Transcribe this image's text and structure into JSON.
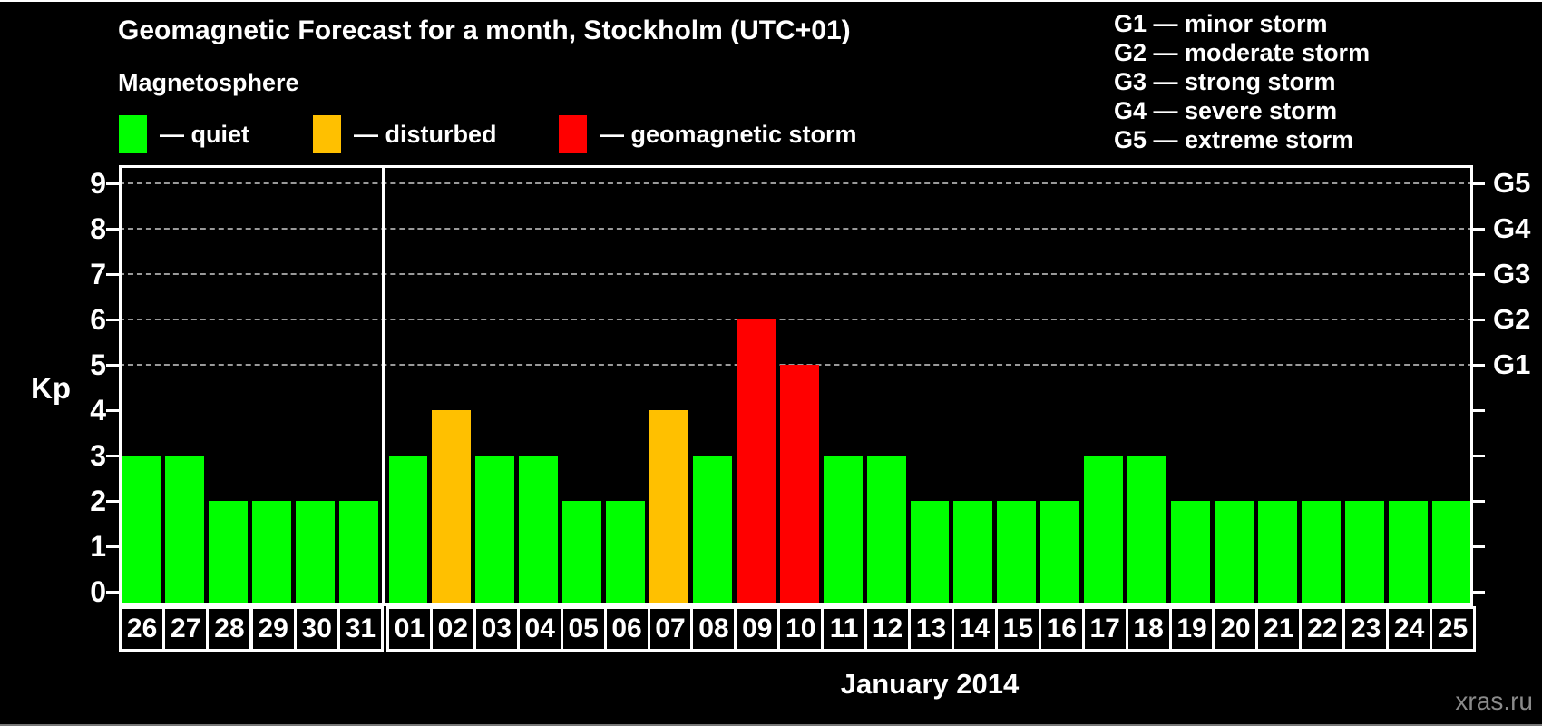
{
  "header": {
    "title": "Geomagnetic Forecast for a month, Stockholm (UTC+01)",
    "subtitle": "Magnetosphere"
  },
  "legend": {
    "items": [
      {
        "status": "quiet",
        "label": "— quiet",
        "color": "#00FF00"
      },
      {
        "status": "disturbed",
        "label": "— disturbed",
        "color": "#FFC000"
      },
      {
        "status": "storm",
        "label": "— geomagnetic storm",
        "color": "#FF0000"
      }
    ]
  },
  "g_scale_legend": {
    "items": [
      "G1 — minor storm",
      "G2 — moderate storm",
      "G3 — strong storm",
      "G4 — severe storm",
      "G5 — extreme storm"
    ]
  },
  "watermark": "xras.ru",
  "chart_data": {
    "type": "bar",
    "title": "Geomagnetic Forecast for a month, Stockholm (UTC+01)",
    "xlabel": "January 2014",
    "ylabel": "Kp",
    "ylim": [
      0,
      9
    ],
    "yticks": [
      0,
      1,
      2,
      3,
      4,
      5,
      6,
      7,
      8,
      9
    ],
    "gridlines_kp": [
      5,
      6,
      7,
      8,
      9
    ],
    "grid": "dashed-horizontal",
    "legend_position": "top",
    "right_axis_labels": [
      {
        "kp": 5,
        "label": "G1"
      },
      {
        "kp": 6,
        "label": "G2"
      },
      {
        "kp": 7,
        "label": "G3"
      },
      {
        "kp": 8,
        "label": "G4"
      },
      {
        "kp": 9,
        "label": "G5"
      }
    ],
    "categories": [
      "26",
      "27",
      "28",
      "29",
      "30",
      "31",
      "01",
      "02",
      "03",
      "04",
      "05",
      "06",
      "07",
      "08",
      "09",
      "10",
      "11",
      "12",
      "13",
      "14",
      "15",
      "16",
      "17",
      "18",
      "19",
      "20",
      "21",
      "22",
      "23",
      "24",
      "25"
    ],
    "values": [
      3,
      3,
      2,
      2,
      2,
      2,
      3,
      4,
      3,
      3,
      2,
      2,
      4,
      3,
      6,
      5,
      3,
      3,
      2,
      2,
      2,
      2,
      3,
      3,
      2,
      2,
      2,
      2,
      2,
      2,
      2
    ],
    "statuses": [
      "quiet",
      "quiet",
      "quiet",
      "quiet",
      "quiet",
      "quiet",
      "quiet",
      "disturbed",
      "quiet",
      "quiet",
      "quiet",
      "quiet",
      "disturbed",
      "quiet",
      "storm",
      "storm",
      "quiet",
      "quiet",
      "quiet",
      "quiet",
      "quiet",
      "quiet",
      "quiet",
      "quiet",
      "quiet",
      "quiet",
      "quiet",
      "quiet",
      "quiet",
      "quiet",
      "quiet"
    ],
    "month_split_index": 6,
    "color_map": {
      "quiet": "#00FF00",
      "disturbed": "#FFC000",
      "storm": "#FF0000"
    }
  }
}
